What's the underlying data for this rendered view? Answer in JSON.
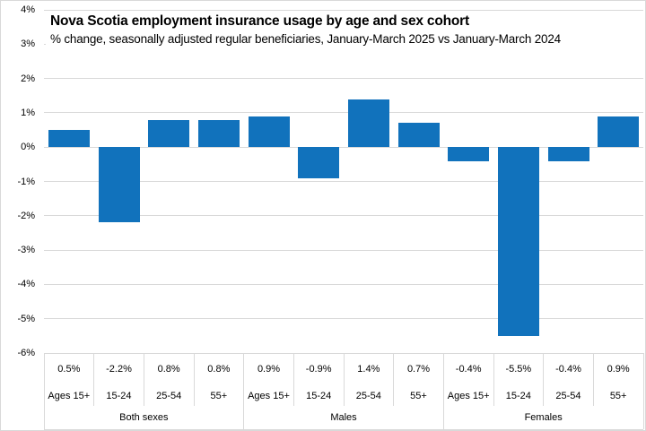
{
  "header": {
    "title": "Nova Scotia employment insurance usage by age and sex cohort",
    "subtitle": "% change, seasonally adjusted regular beneficiaries, January-March 2025 vs January-March 2024"
  },
  "colors": {
    "bar": "#1172bc",
    "gridline": "#d9d9d9",
    "table_border": "#d9d9d9",
    "text": "#000000"
  },
  "chart_data": {
    "type": "bar",
    "title": "Nova Scotia employment insurance usage by age and sex cohort",
    "subtitle": "% change, seasonally adjusted regular beneficiaries, January-March 2025 vs January-March 2024",
    "unit": "%",
    "grid": true,
    "legend": false,
    "data_table_shown": true,
    "groups": [
      {
        "label": "Both sexes",
        "categories": [
          "Ages 15+",
          "15-24",
          "25-54",
          "55+"
        ],
        "values": [
          0.5,
          -2.2,
          0.8,
          0.8
        ]
      },
      {
        "label": "Males",
        "categories": [
          "Ages 15+",
          "15-24",
          "25-54",
          "55+"
        ],
        "values": [
          0.9,
          -0.9,
          1.4,
          0.7
        ]
      },
      {
        "label": "Females",
        "categories": [
          "Ages 15+",
          "15-24",
          "25-54",
          "55+"
        ],
        "values": [
          -0.4,
          -5.5,
          -0.4,
          0.9
        ]
      }
    ],
    "categories": [
      "Ages 15+",
      "15-24",
      "25-54",
      "55+",
      "Ages 15+",
      "15-24",
      "25-54",
      "55+",
      "Ages 15+",
      "15-24",
      "25-54",
      "55+"
    ],
    "values": [
      0.5,
      -2.2,
      0.8,
      0.8,
      0.9,
      -0.9,
      1.4,
      0.7,
      -0.4,
      -5.5,
      -0.4,
      0.9
    ],
    "value_labels": [
      "0.5%",
      "-2.2%",
      "0.8%",
      "0.8%",
      "0.9%",
      "-0.9%",
      "1.4%",
      "0.7%",
      "-0.4%",
      "-5.5%",
      "-0.4%",
      "0.9%"
    ],
    "group_labels": [
      "Both sexes",
      "Males",
      "Females"
    ],
    "y_axis": {
      "min": -6,
      "max": 4,
      "step": 1,
      "tick_labels": [
        "4%",
        "3%",
        "2%",
        "1%",
        "0%",
        "-1%",
        "-2%",
        "-3%",
        "-4%",
        "-5%",
        "-6%"
      ]
    }
  }
}
